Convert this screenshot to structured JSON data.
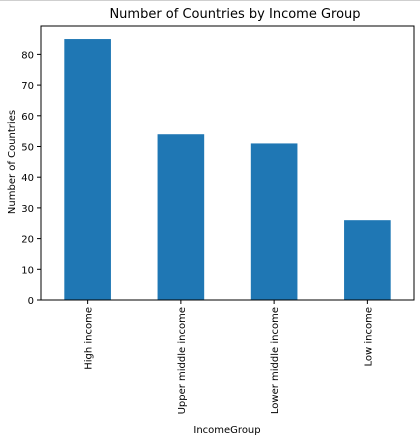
{
  "chart_data": {
    "type": "bar",
    "title": "Number of Countries by Income Group",
    "xlabel": "IncomeGroup",
    "ylabel": "Number of Countries",
    "categories": [
      "High income",
      "Upper middle income",
      "Lower middle income",
      "Low income"
    ],
    "values": [
      85,
      54,
      51,
      26
    ],
    "ylim": [
      0,
      89.25
    ],
    "yticks": [
      "0",
      "10",
      "20",
      "30",
      "40",
      "50",
      "60",
      "70",
      "80"
    ],
    "bar_color": "#1f77b4",
    "grid": false,
    "legend": "none"
  }
}
